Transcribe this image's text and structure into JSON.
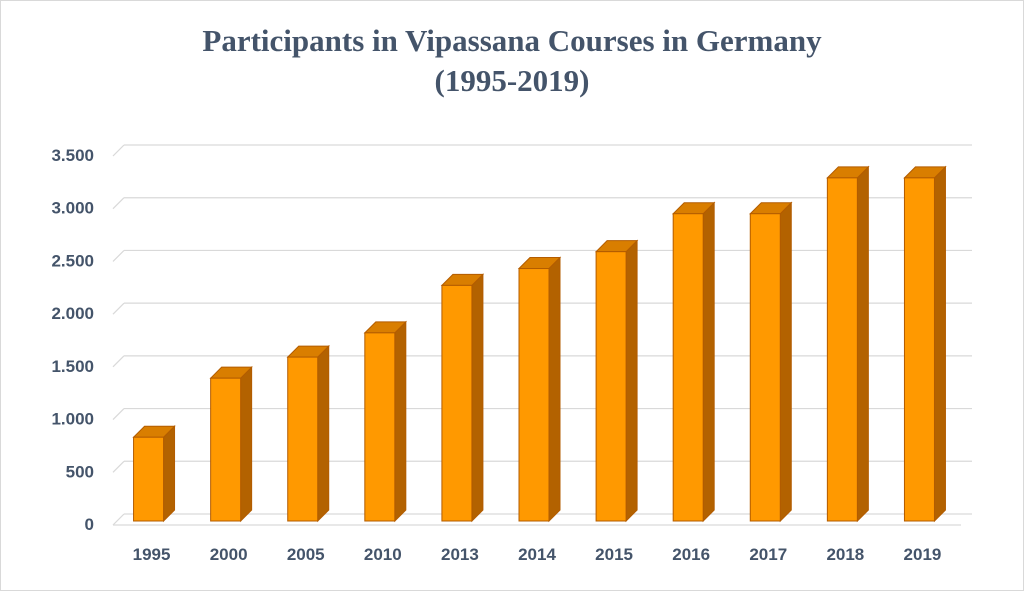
{
  "chart_data": {
    "type": "bar",
    "title": "Participants in Vipassana Courses in Germany",
    "subtitle": "(1995-2019)",
    "categories": [
      "1995",
      "2000",
      "2005",
      "2010",
      "2013",
      "2014",
      "2015",
      "2016",
      "2017",
      "2018",
      "2019"
    ],
    "values": [
      880,
      1440,
      1640,
      1870,
      2320,
      2480,
      2640,
      3000,
      3000,
      3340,
      3340
    ],
    "ylim": [
      0,
      3500
    ],
    "yticks": [
      0,
      500,
      1000,
      1500,
      2000,
      2500,
      3000,
      3500
    ],
    "ytick_labels": [
      "0",
      "500",
      "1.000",
      "1.500",
      "2.000",
      "2.500",
      "3.000",
      "3.500"
    ],
    "xlabel": "",
    "ylabel": "",
    "grid": true,
    "legend": "none",
    "style": "3d-column",
    "colors": {
      "bar_front": "#ff9900",
      "bar_side": "#b36200",
      "bar_top": "#d97e00",
      "bar_outline": "#b35c00",
      "grid": "#d9d9d9",
      "text": "#44546a"
    }
  }
}
